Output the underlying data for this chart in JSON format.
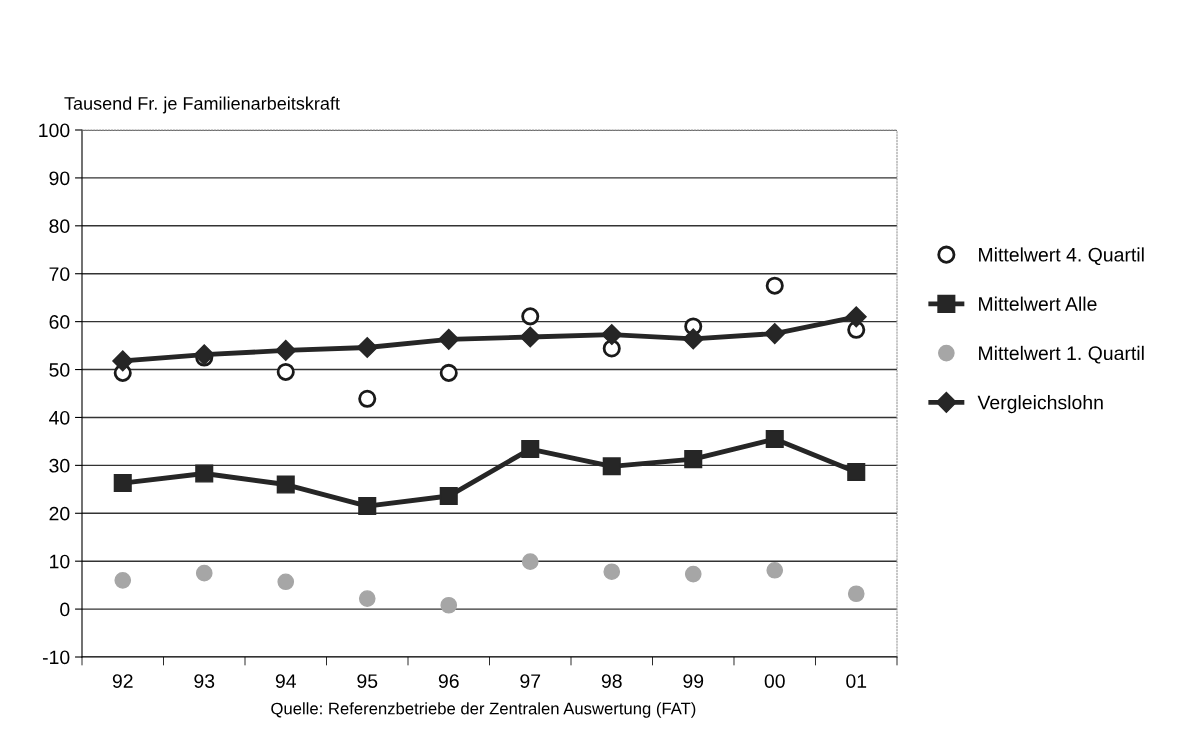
{
  "chart_data": {
    "type": "line",
    "ylabel": "Tausend Fr. je Familienarbeitskraft",
    "categories": [
      "92",
      "93",
      "94",
      "95",
      "96",
      "97",
      "98",
      "99",
      "00",
      "01"
    ],
    "series": [
      {
        "name": "Mittelwert 4. Quartil",
        "type": "scatter",
        "marker": "circle",
        "color": "#ffffff",
        "values": [
          49.3,
          52.5,
          49.5,
          43.9,
          49.3,
          61.1,
          54.4,
          59.0,
          67.5,
          58.3
        ]
      },
      {
        "name": "Mittelwert Alle",
        "marker": "square",
        "line_style": "solid",
        "color": "#262626",
        "values": [
          26.3,
          28.3,
          26.0,
          21.5,
          23.6,
          33.4,
          29.8,
          31.3,
          35.5,
          28.6
        ]
      },
      {
        "name": "Mittelwert 1. Quartil",
        "type": "scatter",
        "marker": "circle",
        "color": "#a6a6a6",
        "values": [
          6.0,
          7.5,
          5.7,
          2.2,
          0.8,
          9.9,
          7.8,
          7.3,
          8.1,
          3.2
        ]
      },
      {
        "name": "Vergleichslohn",
        "marker": "diamond",
        "line_style": "solid",
        "color": "#262626",
        "values": [
          51.8,
          53.1,
          54.0,
          54.6,
          56.3,
          56.8,
          57.3,
          56.4,
          57.5,
          61.0
        ]
      }
    ],
    "ylim": [
      -10,
      100
    ],
    "yticks": [
      -10,
      0,
      10,
      20,
      30,
      40,
      50,
      60,
      70,
      80,
      90,
      100
    ],
    "grid": "y",
    "legend": "right",
    "annotations": [
      "Quelle: Referenzbetriebe der Zentralen Auswertung (FAT)"
    ]
  }
}
